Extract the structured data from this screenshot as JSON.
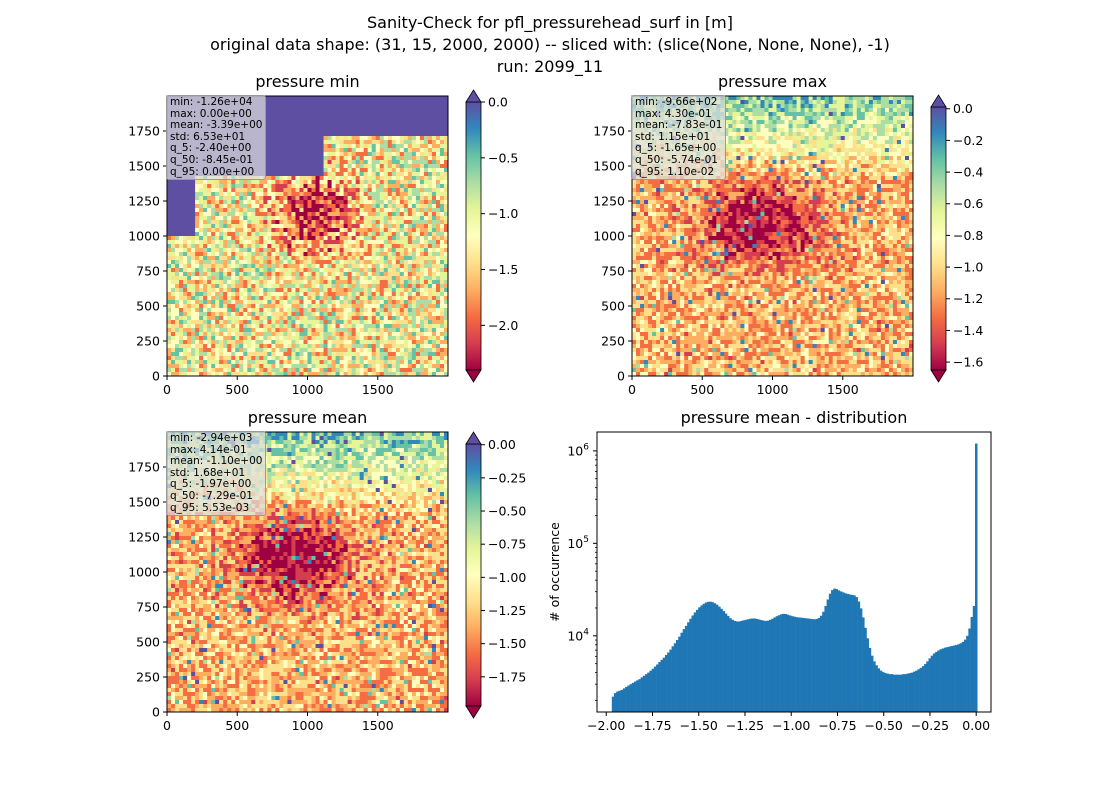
{
  "figure": {
    "title_lines": [
      "Sanity-Check for pfl_pressurehead_surf in [m]",
      "original data shape: (31, 15, 2000, 2000) -- sliced with: (slice(None, None, None), -1)",
      "run: 2099_11"
    ]
  },
  "colors": {
    "spectral": [
      "#9e0142",
      "#d53e4f",
      "#f46d43",
      "#fdae61",
      "#fee08b",
      "#ffffbf",
      "#e6f598",
      "#abdda4",
      "#66c2a5",
      "#3288bd",
      "#5e4fa2"
    ],
    "hist_bar": "#1f77b4"
  },
  "panels": [
    {
      "title": "pressure min",
      "stats": [
        "min: -1.26e+04",
        "max: 0.00e+00",
        "mean: -3.39e+00",
        "std: 6.53e+01",
        "q_5: -2.40e+00",
        "q_50: -8.45e-01",
        "q_95: 0.00e+00"
      ],
      "xticks": [
        "0",
        "500",
        "1000",
        "1500"
      ],
      "yticks": [
        "0",
        "250",
        "500",
        "750",
        "1000",
        "1250",
        "1500",
        "1750"
      ],
      "cbar": {
        "vmin": -2.4,
        "vmax": 0.0,
        "ticks": [
          "0.0",
          "−0.5",
          "−1.0",
          "−1.5",
          "−2.0"
        ],
        "tick_values": [
          0.0,
          -0.5,
          -1.0,
          -1.5,
          -2.0
        ],
        "extend": "both"
      }
    },
    {
      "title": "pressure max",
      "stats": [
        "min: -9.66e+02",
        "max: 4.30e-01",
        "mean: -7.83e-01",
        "std: 1.15e+01",
        "q_5: -1.65e+00",
        "q_50: -5.74e-01",
        "q_95: 1.10e-02"
      ],
      "xticks": [
        "0",
        "500",
        "1000",
        "1500"
      ],
      "yticks": [
        "0",
        "250",
        "500",
        "750",
        "1000",
        "1250",
        "1500",
        "1750"
      ],
      "cbar": {
        "vmin": -1.65,
        "vmax": 0.011,
        "ticks": [
          "0.0",
          "−0.2",
          "−0.4",
          "−0.6",
          "−0.8",
          "−1.0",
          "−1.2",
          "−1.4",
          "−1.6"
        ],
        "tick_values": [
          0.0,
          -0.2,
          -0.4,
          -0.6,
          -0.8,
          -1.0,
          -1.2,
          -1.4,
          -1.6
        ],
        "extend": "both"
      }
    },
    {
      "title": "pressure mean",
      "stats": [
        "min: -2.94e+03",
        "max: 4.14e-01",
        "mean: -1.10e+00",
        "std: 1.68e+01",
        "q_5: -1.97e+00",
        "q_50: -7.29e-01",
        "q_95: 5.53e-03"
      ],
      "xticks": [
        "0",
        "500",
        "1000",
        "1500"
      ],
      "yticks": [
        "0",
        "250",
        "500",
        "750",
        "1000",
        "1250",
        "1500",
        "1750"
      ],
      "cbar": {
        "vmin": -1.97,
        "vmax": 0.0055,
        "ticks": [
          "0.00",
          "−0.25",
          "−0.50",
          "−0.75",
          "−1.00",
          "−1.25",
          "−1.50",
          "−1.75"
        ],
        "tick_values": [
          0.0,
          -0.25,
          -0.5,
          -0.75,
          -1.0,
          -1.25,
          -1.5,
          -1.75
        ],
        "extend": "both"
      }
    }
  ],
  "chart_data": [
    {
      "type": "heatmap",
      "title": "pressure min",
      "xlim": [
        0,
        2000
      ],
      "ylim": [
        0,
        2000
      ],
      "colormap": "Spectral",
      "color_range": [
        -2.4,
        0.0
      ]
    },
    {
      "type": "heatmap",
      "title": "pressure max",
      "xlim": [
        0,
        2000
      ],
      "ylim": [
        0,
        2000
      ],
      "colormap": "Spectral",
      "color_range": [
        -1.65,
        0.011
      ]
    },
    {
      "type": "heatmap",
      "title": "pressure mean",
      "xlim": [
        0,
        2000
      ],
      "ylim": [
        0,
        2000
      ],
      "colormap": "Spectral",
      "color_range": [
        -1.97,
        0.0055
      ]
    },
    {
      "type": "bar",
      "title": "pressure mean - distribution",
      "ylabel": "# of occurrence",
      "xlabel": "",
      "yscale": "log",
      "xlim": [
        -2.05,
        0.08
      ],
      "ylim": [
        1500,
        1600000
      ],
      "xticks": [
        "−2.00",
        "−1.75",
        "−1.50",
        "−1.25",
        "−1.00",
        "−0.75",
        "−0.50",
        "−0.25",
        "0.00"
      ],
      "xtick_values": [
        -2.0,
        -1.75,
        -1.5,
        -1.25,
        -1.0,
        -0.75,
        -0.5,
        -0.25,
        0.0
      ],
      "yticks": [
        {
          "base": "10",
          "exp": "4",
          "value": 10000
        },
        {
          "base": "10",
          "exp": "5",
          "value": 100000
        },
        {
          "base": "10",
          "exp": "6",
          "value": 1000000
        }
      ],
      "bin_range": [
        -1.97,
        0.0055
      ],
      "counts": [
        2200,
        2400,
        2500,
        2550,
        2600,
        2700,
        2800,
        2900,
        3000,
        3100,
        3200,
        3300,
        3400,
        3550,
        3700,
        3850,
        4000,
        4200,
        4400,
        4650,
        4900,
        5200,
        5500,
        5800,
        6200,
        6600,
        7100,
        7700,
        8300,
        9000,
        9800,
        10800,
        11800,
        12800,
        14000,
        15300,
        16600,
        17900,
        19100,
        20300,
        21300,
        22200,
        22900,
        23300,
        23400,
        23100,
        22500,
        21700,
        20700,
        19600,
        18500,
        17400,
        16400,
        15500,
        14900,
        14500,
        14300,
        14300,
        14500,
        14700,
        14900,
        15100,
        15300,
        15400,
        15400,
        15200,
        15000,
        14800,
        14600,
        14500,
        14600,
        14900,
        15300,
        15800,
        16300,
        16700,
        17100,
        17300,
        17200,
        16900,
        16600,
        16300,
        16100,
        15900,
        15800,
        15700,
        15600,
        15500,
        15400,
        15300,
        15200,
        15100,
        15200,
        15600,
        16500,
        18200,
        21000,
        24700,
        28500,
        31200,
        32400,
        32000,
        31000,
        30200,
        29500,
        28800,
        28400,
        28000,
        27700,
        27400,
        26200,
        23500,
        19800,
        15800,
        12200,
        9400,
        7400,
        6100,
        5300,
        4800,
        4450,
        4200,
        4050,
        3950,
        3900,
        3850,
        3850,
        3800,
        3800,
        3800,
        3800,
        3850,
        3850,
        3900,
        3950,
        4000,
        4100,
        4200,
        4350,
        4500,
        4700,
        4950,
        5300,
        5700,
        6100,
        6450,
        6700,
        6950,
        7150,
        7300,
        7450,
        7550,
        7650,
        7750,
        7850,
        7950,
        8100,
        8300,
        8600,
        9100,
        10000,
        12000,
        16000,
        21000,
        1200000
      ]
    }
  ]
}
